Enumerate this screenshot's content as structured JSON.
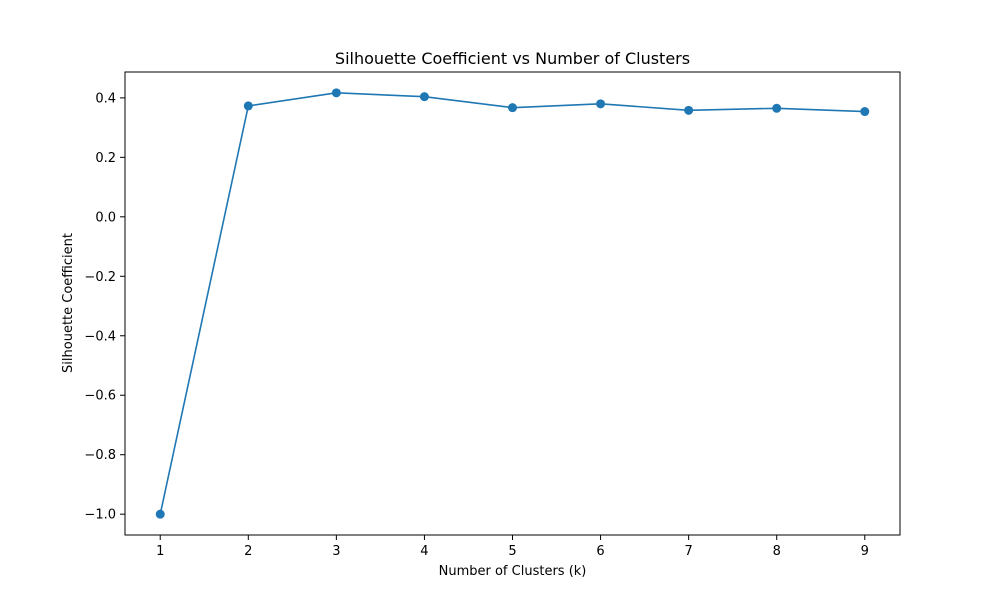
{
  "chart_data": {
    "type": "line",
    "title": "Silhouette Coefficient vs Number of Clusters",
    "xlabel": "Number of Clusters (k)",
    "ylabel": "Silhouette Coefficient",
    "x": [
      1,
      2,
      3,
      4,
      5,
      6,
      7,
      8,
      9
    ],
    "series": [
      {
        "values": [
          -1.0,
          0.373,
          0.417,
          0.404,
          0.367,
          0.38,
          0.358,
          0.365,
          0.354
        ]
      }
    ],
    "xlim": [
      0.6,
      9.4
    ],
    "ylim": [
      -1.07,
      0.487
    ],
    "xticks": [
      1,
      2,
      3,
      4,
      5,
      6,
      7,
      8,
      9
    ],
    "xtick_labels": [
      "1",
      "2",
      "3",
      "4",
      "5",
      "6",
      "7",
      "8",
      "9"
    ],
    "yticks": [
      -1.0,
      -0.8,
      -0.6,
      -0.4,
      -0.2,
      0.0,
      0.2,
      0.4
    ],
    "ytick_labels": [
      "−1.0",
      "−0.8",
      "−0.6",
      "−0.4",
      "−0.2",
      "0.0",
      "0.2",
      "0.4"
    ],
    "grid": false,
    "legend": "none",
    "marker": "circle",
    "line_color": "#1f77b4"
  }
}
